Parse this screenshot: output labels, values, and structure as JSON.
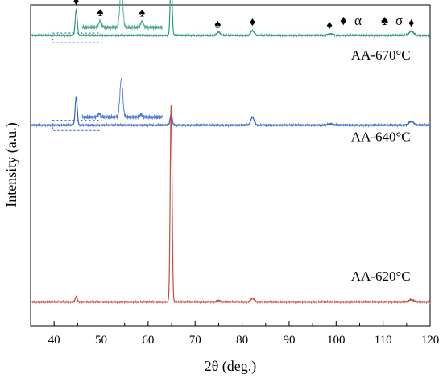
{
  "chart_data": {
    "type": "line",
    "title": "",
    "xlabel": "2θ (deg.)",
    "ylabel": "Intensity (a.u.)",
    "xlim": [
      35,
      120
    ],
    "x_ticks": [
      40,
      50,
      60,
      70,
      80,
      90,
      100,
      110,
      120
    ],
    "y_ticks_visible": false,
    "grid": false,
    "legend": {
      "placement": "top-right",
      "entries": [
        {
          "symbol": "♦",
          "label": "α"
        },
        {
          "symbol": "♠",
          "label": "σ"
        }
      ]
    },
    "series": [
      {
        "name": "AA-670°C",
        "color": "#2e9e6e",
        "baseline": 0.905,
        "peaks": [
          {
            "x": 44.7,
            "h": 0.08,
            "w": 0.22
          },
          {
            "x": 64.9,
            "h": 0.191,
            "w": 0.2
          },
          {
            "x": 75.0,
            "h": 0.01,
            "w": 0.35
          },
          {
            "x": 82.2,
            "h": 0.015,
            "w": 0.35
          },
          {
            "x": 98.8,
            "h": 0.005,
            "w": 0.5
          },
          {
            "x": 116.0,
            "h": 0.012,
            "w": 0.5
          }
        ],
        "markers": [
          {
            "x": 44.7,
            "symbol": "♦"
          },
          {
            "x": 49.8,
            "symbol": "♠"
          },
          {
            "x": 58.7,
            "symbol": "♠"
          },
          {
            "x": 64.9,
            "symbol": "♦"
          },
          {
            "x": 74.8,
            "symbol": "♠"
          },
          {
            "x": 82.2,
            "symbol": "♦"
          },
          {
            "x": 98.6,
            "symbol": "♦"
          },
          {
            "x": 116.0,
            "symbol": "♦"
          }
        ],
        "inset": {
          "x_range": [
            46,
            63
          ],
          "noise": 0.006,
          "peaks": [
            {
              "x": 49.8,
              "h": 0.02,
              "w": 0.3
            },
            {
              "x": 54.3,
              "h": 0.13,
              "w": 0.3
            },
            {
              "x": 58.7,
              "h": 0.018,
              "w": 0.3
            }
          ]
        },
        "label": {
          "text": "AA-670°C",
          "x": 109.5,
          "y": 0.83
        }
      },
      {
        "name": "AA-640°C",
        "color": "#2f63c5",
        "baseline": 0.625,
        "peaks": [
          {
            "x": 44.7,
            "h": 0.09,
            "w": 0.22
          },
          {
            "x": 64.9,
            "h": 0.035,
            "w": 0.22
          },
          {
            "x": 82.2,
            "h": 0.025,
            "w": 0.35
          },
          {
            "x": 98.8,
            "h": 0.004,
            "w": 0.5
          },
          {
            "x": 116.0,
            "h": 0.012,
            "w": 0.5
          }
        ],
        "inset": {
          "x_range": [
            46,
            63
          ],
          "noise": 0.006,
          "peaks": [
            {
              "x": 49.6,
              "h": 0.01,
              "w": 0.3
            },
            {
              "x": 54.3,
              "h": 0.12,
              "w": 0.3
            },
            {
              "x": 58.5,
              "h": 0.008,
              "w": 0.3
            }
          ]
        },
        "label": {
          "text": "AA-640°C",
          "x": 109.5,
          "y": 0.575
        }
      },
      {
        "name": "AA-620°C",
        "color": "#c84a3e",
        "baseline": 0.074,
        "peaks": [
          {
            "x": 44.7,
            "h": 0.016,
            "w": 0.22
          },
          {
            "x": 64.9,
            "h": 0.617,
            "w": 0.2
          },
          {
            "x": 75.0,
            "h": 0.004,
            "w": 0.35
          },
          {
            "x": 82.2,
            "h": 0.012,
            "w": 0.35
          },
          {
            "x": 116.0,
            "h": 0.007,
            "w": 0.5
          }
        ],
        "label": {
          "text": "AA-620°C",
          "x": 109.5,
          "y": 0.14
        }
      }
    ],
    "dotted_boxes": [
      {
        "x_range": [
          39.7,
          50
        ],
        "y_range": [
          0.882,
          0.912
        ]
      },
      {
        "x_range": [
          39.7,
          50
        ],
        "y_range": [
          0.608,
          0.64
        ]
      }
    ]
  }
}
